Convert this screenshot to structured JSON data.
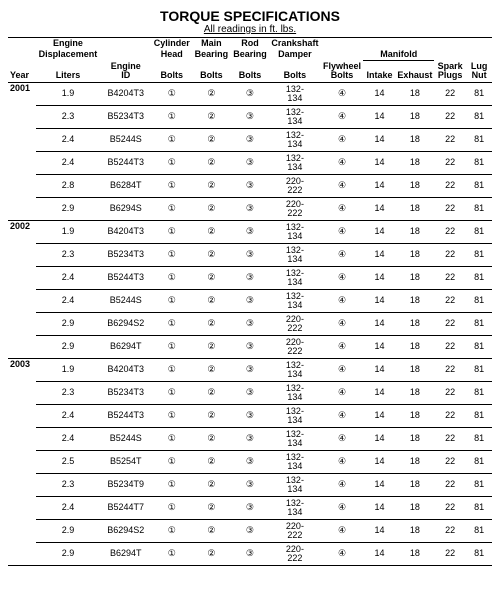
{
  "title": "TORQUE SPECIFICATIONS",
  "subtitle": "All readings in ft. lbs.",
  "columns": {
    "year": "Year",
    "displacement_l1": "Engine",
    "displacement_l2": "Displacement",
    "displacement_l3": "Liters",
    "engine_id_l1": "Engine",
    "engine_id_l2": "ID",
    "cyl_head_l1": "Cylinder",
    "cyl_head_l2": "Head",
    "cyl_head_l3": "Bolts",
    "main_brg_l1": "Main",
    "main_brg_l2": "Bearing",
    "main_brg_l3": "Bolts",
    "rod_brg_l1": "Rod",
    "rod_brg_l2": "Bearing",
    "rod_brg_l3": "Bolts",
    "crank_l1": "Crankshaft",
    "crank_l2": "Damper",
    "crank_l3": "Bolts",
    "flywheel_l1": "Flywheel",
    "flywheel_l2": "Bolts",
    "manifold": "Manifold",
    "manifold_intake": "Intake",
    "manifold_exhaust": "Exhaust",
    "spark_l1": "Spark",
    "spark_l2": "Plugs",
    "lug_l1": "Lug",
    "lug_l2": "Nut"
  },
  "groups": [
    {
      "year": "2001",
      "rows": [
        {
          "disp": "1.9",
          "eid": "B4204T3",
          "chb": "①",
          "mbb": "②",
          "rbb": "③",
          "cdb": "132-134",
          "fly": "④",
          "mi": "14",
          "me": "18",
          "sp": "22",
          "lug": "81"
        },
        {
          "disp": "2.3",
          "eid": "B5234T3",
          "chb": "①",
          "mbb": "②",
          "rbb": "③",
          "cdb": "132-134",
          "fly": "④",
          "mi": "14",
          "me": "18",
          "sp": "22",
          "lug": "81"
        },
        {
          "disp": "2.4",
          "eid": "B5244S",
          "chb": "①",
          "mbb": "②",
          "rbb": "③",
          "cdb": "132-134",
          "fly": "④",
          "mi": "14",
          "me": "18",
          "sp": "22",
          "lug": "81"
        },
        {
          "disp": "2.4",
          "eid": "B5244T3",
          "chb": "①",
          "mbb": "②",
          "rbb": "③",
          "cdb": "132-134",
          "fly": "④",
          "mi": "14",
          "me": "18",
          "sp": "22",
          "lug": "81"
        },
        {
          "disp": "2.8",
          "eid": "B6284T",
          "chb": "①",
          "mbb": "②",
          "rbb": "③",
          "cdb": "220-222",
          "fly": "④",
          "mi": "14",
          "me": "18",
          "sp": "22",
          "lug": "81"
        },
        {
          "disp": "2.9",
          "eid": "B6294S",
          "chb": "①",
          "mbb": "②",
          "rbb": "③",
          "cdb": "220-222",
          "fly": "④",
          "mi": "14",
          "me": "18",
          "sp": "22",
          "lug": "81"
        }
      ]
    },
    {
      "year": "2002",
      "rows": [
        {
          "disp": "1.9",
          "eid": "B4204T3",
          "chb": "①",
          "mbb": "②",
          "rbb": "③",
          "cdb": "132-134",
          "fly": "④",
          "mi": "14",
          "me": "18",
          "sp": "22",
          "lug": "81"
        },
        {
          "disp": "2.3",
          "eid": "B5234T3",
          "chb": "①",
          "mbb": "②",
          "rbb": "③",
          "cdb": "132-134",
          "fly": "④",
          "mi": "14",
          "me": "18",
          "sp": "22",
          "lug": "81"
        },
        {
          "disp": "2.4",
          "eid": "B5244T3",
          "chb": "①",
          "mbb": "②",
          "rbb": "③",
          "cdb": "132-134",
          "fly": "④",
          "mi": "14",
          "me": "18",
          "sp": "22",
          "lug": "81"
        },
        {
          "disp": "2.4",
          "eid": "B5244S",
          "chb": "①",
          "mbb": "②",
          "rbb": "③",
          "cdb": "132-134",
          "fly": "④",
          "mi": "14",
          "me": "18",
          "sp": "22",
          "lug": "81"
        },
        {
          "disp": "2.9",
          "eid": "B6294S2",
          "chb": "①",
          "mbb": "②",
          "rbb": "③",
          "cdb": "220-222",
          "fly": "④",
          "mi": "14",
          "me": "18",
          "sp": "22",
          "lug": "81"
        },
        {
          "disp": "2.9",
          "eid": "B6294T",
          "chb": "①",
          "mbb": "②",
          "rbb": "③",
          "cdb": "220-222",
          "fly": "④",
          "mi": "14",
          "me": "18",
          "sp": "22",
          "lug": "81"
        }
      ]
    },
    {
      "year": "2003",
      "rows": [
        {
          "disp": "1.9",
          "eid": "B4204T3",
          "chb": "①",
          "mbb": "②",
          "rbb": "③",
          "cdb": "132-134",
          "fly": "④",
          "mi": "14",
          "me": "18",
          "sp": "22",
          "lug": "81"
        },
        {
          "disp": "2.3",
          "eid": "B5234T3",
          "chb": "①",
          "mbb": "②",
          "rbb": "③",
          "cdb": "132-134",
          "fly": "④",
          "mi": "14",
          "me": "18",
          "sp": "22",
          "lug": "81"
        },
        {
          "disp": "2.4",
          "eid": "B5244T3",
          "chb": "①",
          "mbb": "②",
          "rbb": "③",
          "cdb": "132-134",
          "fly": "④",
          "mi": "14",
          "me": "18",
          "sp": "22",
          "lug": "81"
        },
        {
          "disp": "2.4",
          "eid": "B5244S",
          "chb": "①",
          "mbb": "②",
          "rbb": "③",
          "cdb": "132-134",
          "fly": "④",
          "mi": "14",
          "me": "18",
          "sp": "22",
          "lug": "81"
        },
        {
          "disp": "2.5",
          "eid": "B5254T",
          "chb": "①",
          "mbb": "②",
          "rbb": "③",
          "cdb": "132-134",
          "fly": "④",
          "mi": "14",
          "me": "18",
          "sp": "22",
          "lug": "81"
        },
        {
          "disp": "2.3",
          "eid": "B5234T9",
          "chb": "①",
          "mbb": "②",
          "rbb": "③",
          "cdb": "132-134",
          "fly": "④",
          "mi": "14",
          "me": "18",
          "sp": "22",
          "lug": "81"
        },
        {
          "disp": "2.4",
          "eid": "B5244T7",
          "chb": "①",
          "mbb": "②",
          "rbb": "③",
          "cdb": "132-134",
          "fly": "④",
          "mi": "14",
          "me": "18",
          "sp": "22",
          "lug": "81"
        },
        {
          "disp": "2.9",
          "eid": "B6294S2",
          "chb": "①",
          "mbb": "②",
          "rbb": "③",
          "cdb": "220-222",
          "fly": "④",
          "mi": "14",
          "me": "18",
          "sp": "22",
          "lug": "81"
        },
        {
          "disp": "2.9",
          "eid": "B6294T",
          "chb": "①",
          "mbb": "②",
          "rbb": "③",
          "cdb": "220-222",
          "fly": "④",
          "mi": "14",
          "me": "18",
          "sp": "22",
          "lug": "81"
        }
      ]
    }
  ]
}
